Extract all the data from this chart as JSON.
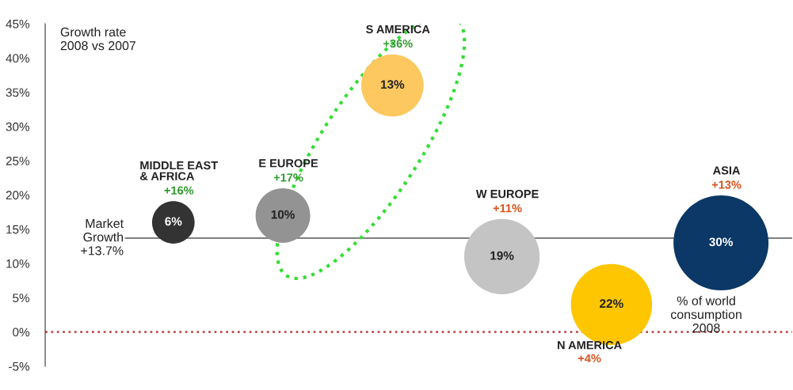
{
  "chart_data": {
    "type": "bubble",
    "categories": [
      "MIDDLE EAST\n& AFRICA",
      "E EUROPE",
      "S AMERICA",
      "W EUROPE",
      "N AMERICA",
      "ASIA"
    ],
    "values": [
      16,
      17,
      36,
      11,
      4,
      13
    ],
    "sizes": [
      0.2,
      0.33,
      0.43,
      0.63,
      0.73,
      1
    ],
    "colors": [
      "#333333",
      "#939393",
      "#fdc85f",
      "#c4c4c4",
      "#fdc600",
      "#0b3866"
    ],
    "value_labels": [
      "+16%",
      "+17%",
      "+36%",
      "+11%",
      "+4%",
      "+13%"
    ],
    "ylim": [
      -5,
      45
    ],
    "yticks": [
      {
        "value": -5,
        "label": "-5%"
      },
      {
        "value": 0,
        "label": "0%"
      },
      {
        "value": 5,
        "label": "5%"
      },
      {
        "value": 10,
        "label": "10%"
      },
      {
        "value": 15,
        "label": "15%"
      },
      {
        "value": 20,
        "label": "20%"
      },
      {
        "value": 25,
        "label": "25%"
      },
      {
        "value": 30,
        "label": "30%"
      },
      {
        "value": 35,
        "label": "35%"
      },
      {
        "value": 40,
        "label": "40%"
      },
      {
        "value": 45,
        "label": "45%"
      }
    ],
    "tick_labels": "y",
    "ref_lines": [
      {
        "axis": "y",
        "value": 13.7,
        "label": "Market\nGrowth\n+13.7%",
        "color": "#555555",
        "line_style": "solid"
      },
      {
        "axis": "y",
        "value": 0,
        "color": "#c0504d",
        "line_style": "dotted"
      }
    ],
    "annotations": [
      "Growth rate\n2008 vs 2007",
      "% of world\nconsumption\n2008",
      "6%",
      "10%",
      "13%",
      "19%",
      "22%",
      "30%"
    ]
  }
}
